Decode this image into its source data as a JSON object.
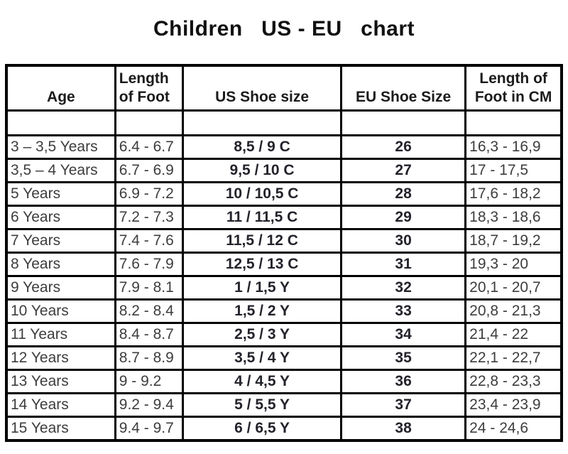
{
  "title": "Children   US - EU   chart",
  "colors": {
    "border": "#000000",
    "text": "#3d3d3d",
    "bold_text": "#23232b",
    "background": "#ffffff"
  },
  "chart_data": {
    "type": "table",
    "title": "Children   US - EU   chart",
    "columns": [
      "Age",
      "Length of Foot",
      "US Shoe size",
      "EU Shoe Size",
      "Length of Foot in CM"
    ],
    "rows": [
      [
        "3 – 3,5 Years",
        "6.4 - 6.7",
        "8,5 / 9 C",
        "26",
        "16,3 - 16,9"
      ],
      [
        "3,5 – 4 Years",
        "6.7 - 6.9",
        "9,5 / 10 C",
        "27",
        "17 - 17,5"
      ],
      [
        "5 Years",
        "6.9 - 7.2",
        "10 / 10,5 C",
        "28",
        "17,6 - 18,2"
      ],
      [
        "6 Years",
        "7.2 - 7.3",
        "11 / 11,5 C",
        "29",
        "18,3 - 18,6"
      ],
      [
        "7 Years",
        "7.4 - 7.6",
        "11,5 / 12 C",
        "30",
        "18,7 - 19,2"
      ],
      [
        "8 Years",
        "7.6 - 7.9",
        "12,5 / 13 C",
        "31",
        "19,3 - 20"
      ],
      [
        "9 Years",
        "7.9 - 8.1",
        "1 / 1,5 Y",
        "32",
        "20,1 - 20,7"
      ],
      [
        "10 Years",
        "8.2 - 8.4",
        "1,5 / 2 Y",
        "33",
        "20,8 - 21,3"
      ],
      [
        "11 Years",
        "8.4 - 8.7",
        "2,5 / 3 Y",
        "34",
        "21,4 - 22"
      ],
      [
        "12 Years",
        "8.7 - 8.9",
        "3,5 / 4 Y",
        "35",
        "22,1 - 22,7"
      ],
      [
        "13 Years",
        "9 - 9.2",
        "4 / 4,5 Y",
        "36",
        "22,8 - 23,3"
      ],
      [
        "14 Years",
        "9.2 - 9.4",
        "5 / 5,5 Y",
        "37",
        "23,4 - 23,9"
      ],
      [
        "15 Years",
        "9.4 - 9.7",
        "6 / 6,5 Y",
        "38",
        "24 - 24,6"
      ]
    ]
  }
}
